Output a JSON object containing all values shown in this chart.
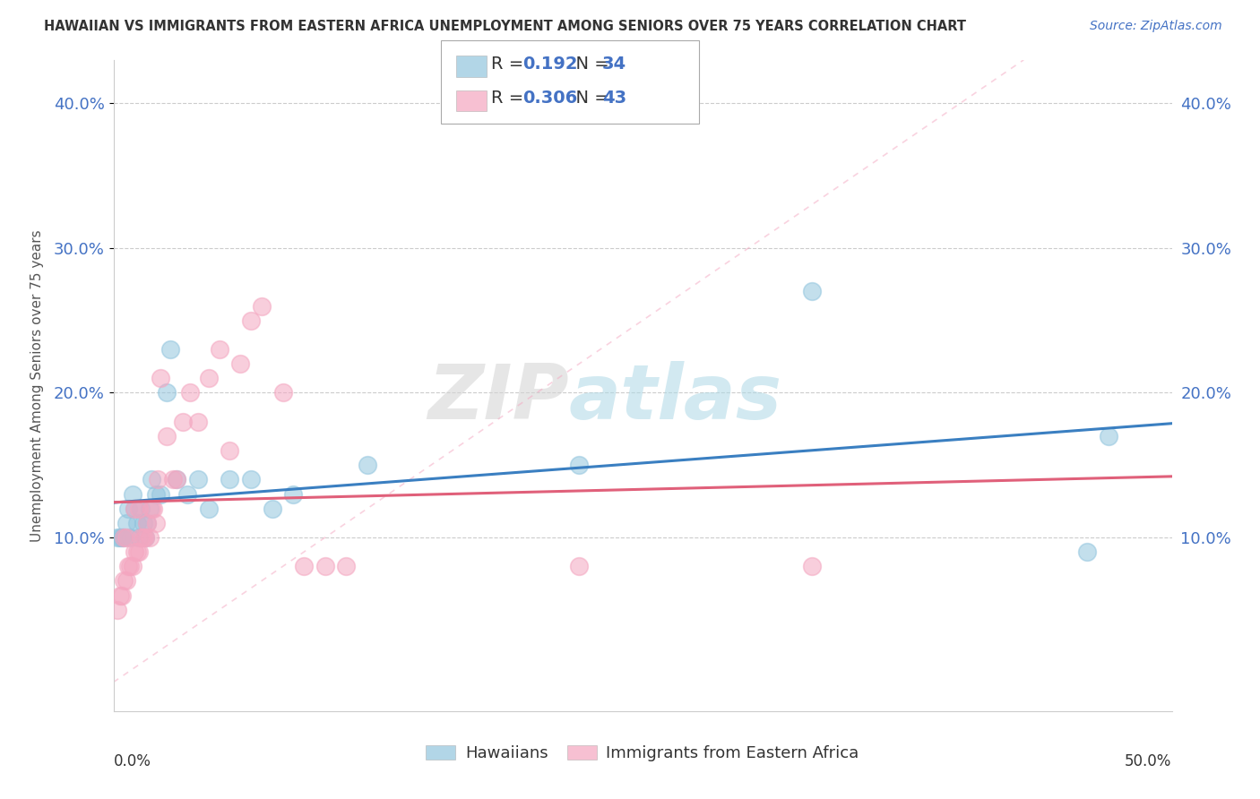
{
  "title": "HAWAIIAN VS IMMIGRANTS FROM EASTERN AFRICA UNEMPLOYMENT AMONG SENIORS OVER 75 YEARS CORRELATION CHART",
  "source": "Source: ZipAtlas.com",
  "ylabel": "Unemployment Among Seniors over 75 years",
  "xlim": [
    0.0,
    0.5
  ],
  "ylim": [
    -0.02,
    0.43
  ],
  "yticks": [
    0.1,
    0.2,
    0.3,
    0.4
  ],
  "ytick_labels": [
    "10.0%",
    "20.0%",
    "30.0%",
    "40.0%"
  ],
  "legend_hawaiian_R": "0.192",
  "legend_hawaiian_N": "34",
  "legend_eastern_R": "0.306",
  "legend_eastern_N": "43",
  "hawaiian_color": "#92c5de",
  "eastern_color": "#f4a6c0",
  "hawaiian_line_color": "#3a7fc1",
  "eastern_line_color": "#e0607a",
  "diagonal_color": "#f4a6c0",
  "watermark_zip": "ZIP",
  "watermark_atlas": "atlas",
  "background_color": "#ffffff",
  "grid_color": "#cccccc",
  "hawaiian_x": [
    0.002,
    0.003,
    0.004,
    0.005,
    0.006,
    0.007,
    0.008,
    0.009,
    0.01,
    0.011,
    0.012,
    0.013,
    0.014,
    0.015,
    0.016,
    0.017,
    0.018,
    0.02,
    0.022,
    0.025,
    0.027,
    0.03,
    0.035,
    0.04,
    0.045,
    0.055,
    0.065,
    0.075,
    0.085,
    0.12,
    0.22,
    0.33,
    0.46,
    0.47
  ],
  "hawaiian_y": [
    0.1,
    0.1,
    0.1,
    0.1,
    0.11,
    0.12,
    0.1,
    0.13,
    0.12,
    0.11,
    0.1,
    0.12,
    0.11,
    0.1,
    0.11,
    0.12,
    0.14,
    0.13,
    0.13,
    0.2,
    0.23,
    0.14,
    0.13,
    0.14,
    0.12,
    0.14,
    0.14,
    0.12,
    0.13,
    0.15,
    0.15,
    0.27,
    0.09,
    0.17
  ],
  "eastern_x": [
    0.002,
    0.003,
    0.004,
    0.005,
    0.005,
    0.006,
    0.006,
    0.007,
    0.008,
    0.009,
    0.01,
    0.01,
    0.011,
    0.012,
    0.012,
    0.013,
    0.014,
    0.015,
    0.016,
    0.017,
    0.018,
    0.019,
    0.02,
    0.021,
    0.022,
    0.025,
    0.028,
    0.03,
    0.033,
    0.036,
    0.04,
    0.045,
    0.05,
    0.055,
    0.06,
    0.065,
    0.07,
    0.08,
    0.09,
    0.1,
    0.11,
    0.22,
    0.33
  ],
  "eastern_y": [
    0.05,
    0.06,
    0.06,
    0.07,
    0.1,
    0.07,
    0.1,
    0.08,
    0.08,
    0.08,
    0.09,
    0.12,
    0.09,
    0.09,
    0.12,
    0.1,
    0.1,
    0.1,
    0.11,
    0.1,
    0.12,
    0.12,
    0.11,
    0.14,
    0.21,
    0.17,
    0.14,
    0.14,
    0.18,
    0.2,
    0.18,
    0.21,
    0.23,
    0.16,
    0.22,
    0.25,
    0.26,
    0.2,
    0.08,
    0.08,
    0.08,
    0.08,
    0.08
  ]
}
